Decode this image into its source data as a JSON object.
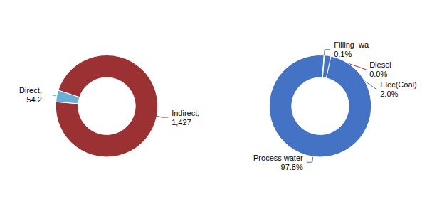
{
  "chart_data": [
    {
      "type": "pie",
      "values": [
        1427,
        54.2
      ],
      "value_labels": [
        "Indirect,\n1,427",
        "Direct,\n54.2"
      ],
      "colors": [
        "#9b3132",
        "#6baed6"
      ],
      "data_labels": true
    },
    {
      "type": "pie",
      "values": [
        97.8,
        0.1,
        0.05,
        2.0
      ],
      "value_labels": [
        "Process water\n97.8%",
        "Filling  wa\n0.1%",
        "Diesel\n0.0%",
        "Elec(Coal)\n2.0%"
      ],
      "colors": [
        "#4472c4",
        "#4472c4",
        "#9b3132",
        "#4472c4"
      ],
      "data_labels": true
    }
  ]
}
